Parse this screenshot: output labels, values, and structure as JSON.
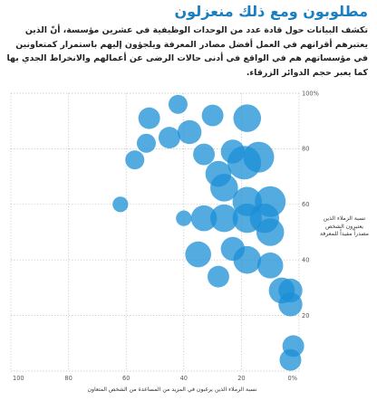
{
  "header": {
    "title": "مطلوبون ومع ذلك منعزلون",
    "subtitle": "تكشف البيانات حول قادة عدد من الوحدات الوظيفية في عشرين مؤسسة، أنّ الذين يعتبرهم أقرانهم في العمل أفضل مصادر المعرفة ويلجؤون إليهم باستمرار كمتعاونين في مؤسساتهم هم في الواقع في أدنى حالات الرضى عن أعمالهم والانخراط الجدي بها كما يعبر حجم الدوائر الزرقاء."
  },
  "chart_data": {
    "type": "scatter",
    "title": "مطلوبون ومع ذلك منعزلون",
    "xlabel": "نسبة الزملاء الذين يرغبون في المزيد من المساعدة من الشخص المتعاون",
    "ylabel": "نسبة الزملاء الذين يعتبرون الشخص مصدراً مفيداً للمعرفة",
    "xlim": [
      100,
      0
    ],
    "ylim": [
      0,
      100
    ],
    "x_reversed": true,
    "x_ticks": [
      "100",
      "80",
      "60",
      "40",
      "20",
      "0"
    ],
    "y_ticks": [
      "100",
      "80",
      "60",
      "40",
      "20"
    ],
    "x_ticks_percent_last": true,
    "y_ticks_percent_first": true,
    "grid": "dotted",
    "marker_color": "#1a8fd6",
    "marker_opacity": 0.75,
    "size_meaning": "relative bubble size (larger circle = larger value)",
    "points": [
      {
        "x": 62,
        "y": 60,
        "s": 1
      },
      {
        "x": 57,
        "y": 76,
        "s": 2
      },
      {
        "x": 53,
        "y": 82,
        "s": 2
      },
      {
        "x": 52,
        "y": 91,
        "s": 3
      },
      {
        "x": 45,
        "y": 84,
        "s": 3
      },
      {
        "x": 42,
        "y": 96,
        "s": 2
      },
      {
        "x": 38,
        "y": 86,
        "s": 4
      },
      {
        "x": 33,
        "y": 78,
        "s": 3
      },
      {
        "x": 30,
        "y": 92,
        "s": 3
      },
      {
        "x": 18,
        "y": 91,
        "s": 6
      },
      {
        "x": 23,
        "y": 79,
        "s": 4
      },
      {
        "x": 14,
        "y": 77,
        "s": 8
      },
      {
        "x": 19,
        "y": 75,
        "s": 10
      },
      {
        "x": 26,
        "y": 66,
        "s": 6
      },
      {
        "x": 28,
        "y": 71,
        "s": 5
      },
      {
        "x": 18,
        "y": 61,
        "s": 7
      },
      {
        "x": 10,
        "y": 61,
        "s": 8
      },
      {
        "x": 33,
        "y": 55,
        "s": 5
      },
      {
        "x": 26,
        "y": 55,
        "s": 6
      },
      {
        "x": 18,
        "y": 55,
        "s": 7
      },
      {
        "x": 12,
        "y": 55,
        "s": 7
      },
      {
        "x": 10,
        "y": 50,
        "s": 6
      },
      {
        "x": 40,
        "y": 55,
        "s": 1
      },
      {
        "x": 35,
        "y": 42,
        "s": 5
      },
      {
        "x": 23,
        "y": 44,
        "s": 4
      },
      {
        "x": 18,
        "y": 40,
        "s": 6
      },
      {
        "x": 28,
        "y": 34,
        "s": 3
      },
      {
        "x": 10,
        "y": 38,
        "s": 5
      },
      {
        "x": 6,
        "y": 29,
        "s": 5
      },
      {
        "x": 3,
        "y": 29,
        "s": 4
      },
      {
        "x": 3,
        "y": 24,
        "s": 4
      },
      {
        "x": 2,
        "y": 9,
        "s": 3
      },
      {
        "x": 3,
        "y": 4,
        "s": 3
      }
    ]
  }
}
